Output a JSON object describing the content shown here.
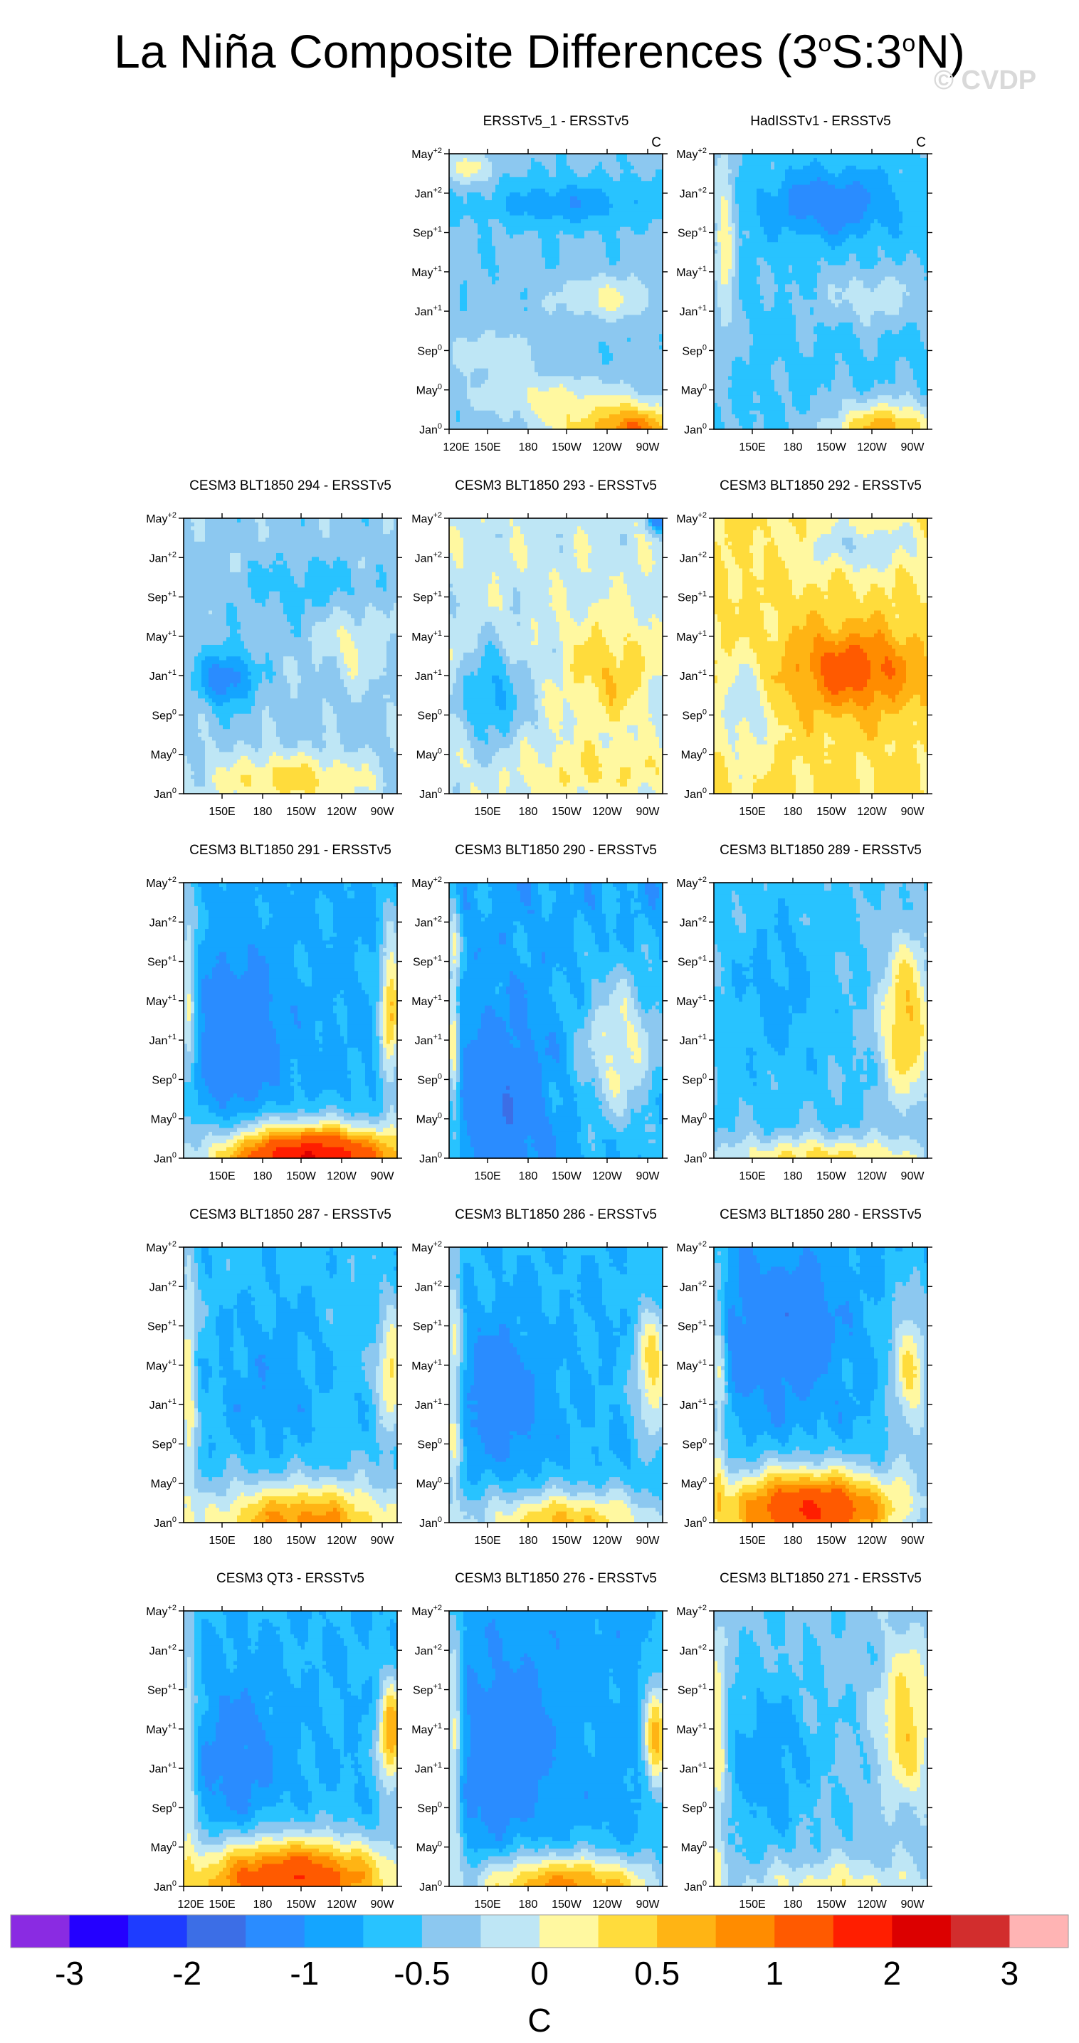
{
  "title": {
    "main": "La Niña Composite Differences (3",
    "sup1": "o",
    "mid": "S:3",
    "sup2": "o",
    "end": "N)"
  },
  "watermark": "© CVDP",
  "units_corner": "C",
  "x_ticks": [
    "120E",
    "150E",
    "180",
    "150W",
    "120W",
    "90W"
  ],
  "y_ticks": [
    {
      "base": "Jan",
      "sup": "0"
    },
    {
      "base": "May",
      "sup": "0"
    },
    {
      "base": "Sep",
      "sup": "0"
    },
    {
      "base": "Jan",
      "sup": "+1"
    },
    {
      "base": "May",
      "sup": "+1"
    },
    {
      "base": "Sep",
      "sup": "+1"
    },
    {
      "base": "Jan",
      "sup": "+2"
    },
    {
      "base": "May",
      "sup": "+2"
    }
  ],
  "panels": [
    {
      "title": "ERSSTv5_1 - ERSSTv5",
      "row": 0,
      "col": 1,
      "units": "C",
      "show_120E": true,
      "pattern": "obs1"
    },
    {
      "title": "HadISSTv1 - ERSSTv5",
      "row": 0,
      "col": 2,
      "units": "C",
      "show_120E": false,
      "pattern": "obs2"
    },
    {
      "title": "CESM3 BLT1850 294 - ERSSTv5",
      "row": 1,
      "col": 0,
      "pattern": "m294"
    },
    {
      "title": "CESM3 BLT1850 293 - ERSSTv5",
      "row": 1,
      "col": 1,
      "pattern": "m293"
    },
    {
      "title": "CESM3 BLT1850 292 - ERSSTv5",
      "row": 1,
      "col": 2,
      "pattern": "m292"
    },
    {
      "title": "CESM3 BLT1850 291 - ERSSTv5",
      "row": 2,
      "col": 0,
      "pattern": "m291"
    },
    {
      "title": "CESM3 BLT1850 290 - ERSSTv5",
      "row": 2,
      "col": 1,
      "pattern": "m290"
    },
    {
      "title": "CESM3 BLT1850 289 - ERSSTv5",
      "row": 2,
      "col": 2,
      "pattern": "m289"
    },
    {
      "title": "CESM3 BLT1850 287 - ERSSTv5",
      "row": 3,
      "col": 0,
      "pattern": "m287"
    },
    {
      "title": "CESM3 BLT1850 286 - ERSSTv5",
      "row": 3,
      "col": 1,
      "pattern": "m286"
    },
    {
      "title": "CESM3 BLT1850 280 - ERSSTv5",
      "row": 3,
      "col": 2,
      "pattern": "m280"
    },
    {
      "title": "CESM3 QT3 - ERSSTv5",
      "row": 4,
      "col": 0,
      "show_120E": true,
      "pattern": "qt3"
    },
    {
      "title": "CESM3 BLT1850 276 - ERSSTv5",
      "row": 4,
      "col": 1,
      "pattern": "m276"
    },
    {
      "title": "CESM3 BLT1850 271 - ERSSTv5",
      "row": 4,
      "col": 2,
      "pattern": "m271"
    }
  ],
  "chart_data": {
    "type": "heatmap",
    "title": "La Niña Composite Differences (3oS:3oN)",
    "xlabel": "",
    "ylabel": "",
    "x_axis": [
      "120E",
      "150E",
      "180",
      "150W",
      "120W",
      "90W"
    ],
    "y_axis": [
      "Jan0",
      "May0",
      "Sep0",
      "Jan+1",
      "May+1",
      "Sep+1",
      "Jan+2",
      "May+2"
    ],
    "colorbar": {
      "label": "C",
      "tick_labels": [
        "-3",
        "-2",
        "-1",
        "-0.5",
        "0",
        "0.5",
        "1",
        "2",
        "3"
      ],
      "levels": [
        -3,
        -2.5,
        -2,
        -1.5,
        -1,
        -0.75,
        -0.5,
        -0.25,
        0,
        0.25,
        0.5,
        0.75,
        1,
        1.5,
        2,
        2.5,
        3
      ],
      "colors": [
        "#8a2be2",
        "#2400ff",
        "#1e3cff",
        "#3c6ee6",
        "#2a8cff",
        "#14a5ff",
        "#28c3ff",
        "#8cc8f0",
        "#bee6f5",
        "#fff8a0",
        "#ffdc3c",
        "#ffb414",
        "#ff8c00",
        "#ff5a00",
        "#ff1e00",
        "#dc0000",
        "#d22d2d",
        "#ffb4b4"
      ]
    },
    "panels": [
      "ERSSTv5_1 - ERSSTv5",
      "HadISSTv1 - ERSSTv5",
      "CESM3 BLT1850 294 - ERSSTv5",
      "CESM3 BLT1850 293 - ERSSTv5",
      "CESM3 BLT1850 292 - ERSSTv5",
      "CESM3 BLT1850 291 - ERSSTv5",
      "CESM3 BLT1850 290 - ERSSTv5",
      "CESM3 BLT1850 289 - ERSSTv5",
      "CESM3 BLT1850 287 - ERSSTv5",
      "CESM3 BLT1850 286 - ERSSTv5",
      "CESM3 BLT1850 280 - ERSSTv5",
      "CESM3 QT3 - ERSSTv5",
      "CESM3 BLT1850 276 - ERSSTv5",
      "CESM3 BLT1850 271 - ERSSTv5"
    ]
  }
}
